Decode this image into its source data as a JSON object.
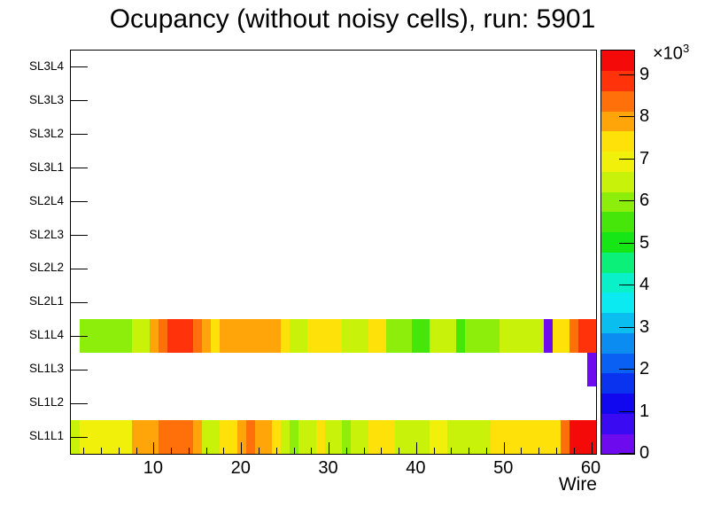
{
  "title": "Ocupancy (without noisy cells), run: 5901",
  "chart_data": {
    "type": "heatmap",
    "title": "Ocupancy (without noisy cells), run: 5901",
    "xlabel": "Wire",
    "ylabel": "",
    "x_range": [
      0.5,
      60.5
    ],
    "n_wires": 60,
    "x_major_ticks": [
      10,
      20,
      30,
      40,
      50,
      60
    ],
    "x_minor_tick_step": 2,
    "grid": "off",
    "zmax": 9580,
    "z_scale": {
      "label": "×10",
      "exponent": "3"
    },
    "colorbar_ticks_thousands": [
      0,
      1,
      2,
      3,
      4,
      5,
      6,
      7,
      8,
      9
    ],
    "palette_low_to_high": [
      "#6E0AEE",
      "#3A0BF2",
      "#1208F0",
      "#0A33F0",
      "#0A60F2",
      "#0A8CF0",
      "#0ABEF0",
      "#0AEAF0",
      "#0AF0C8",
      "#0AF078",
      "#16E616",
      "#46E60A",
      "#8CEE0A",
      "#C8F20A",
      "#F0F00A",
      "#FFE10A",
      "#FFA50A",
      "#FF700A",
      "#FF320A",
      "#F50A0A"
    ],
    "rows_top_to_bottom": [
      {
        "label": "SL3L4",
        "values": []
      },
      {
        "label": "SL3L3",
        "values": []
      },
      {
        "label": "SL3L2",
        "values": []
      },
      {
        "label": "SL3L1",
        "values": []
      },
      {
        "label": "SL2L4",
        "values": []
      },
      {
        "label": "SL2L3",
        "values": []
      },
      {
        "label": "SL2L2",
        "values": []
      },
      {
        "label": "SL2L1",
        "values": []
      },
      {
        "label": "SL1L4",
        "values": [
          0,
          5990,
          5990,
          5990,
          5990,
          5990,
          5990,
          6470,
          6470,
          7900,
          8380,
          8860,
          8860,
          8860,
          8380,
          7900,
          7420,
          7900,
          7900,
          7900,
          7900,
          7900,
          7900,
          7900,
          7420,
          6470,
          6470,
          7420,
          7420,
          7420,
          7420,
          6470,
          6470,
          6470,
          7420,
          7420,
          5990,
          5990,
          5990,
          5510,
          5510,
          6470,
          6470,
          6470,
          5510,
          5990,
          5990,
          5990,
          5990,
          6470,
          6470,
          6470,
          6470,
          6470,
          240,
          7420,
          7420,
          8380,
          8860,
          8860
        ]
      },
      {
        "label": "SL1L3",
        "values": [
          0,
          0,
          0,
          0,
          0,
          0,
          0,
          0,
          0,
          0,
          0,
          0,
          0,
          0,
          0,
          0,
          0,
          0,
          0,
          0,
          0,
          0,
          0,
          0,
          0,
          0,
          0,
          0,
          0,
          0,
          0,
          0,
          0,
          0,
          0,
          0,
          0,
          0,
          0,
          0,
          0,
          0,
          0,
          0,
          0,
          0,
          0,
          0,
          0,
          0,
          0,
          0,
          0,
          0,
          0,
          0,
          0,
          0,
          0,
          240
        ]
      },
      {
        "label": "SL1L2",
        "values": []
      },
      {
        "label": "SL1L1",
        "values": [
          6470,
          6950,
          6950,
          6950,
          6950,
          6950,
          6950,
          7900,
          7900,
          7900,
          8380,
          8380,
          8380,
          8380,
          7900,
          6470,
          6470,
          7420,
          7420,
          7900,
          8380,
          7900,
          7900,
          7420,
          6470,
          5990,
          6470,
          6470,
          7420,
          6470,
          6470,
          5990,
          6470,
          6470,
          7420,
          7420,
          7420,
          6470,
          6470,
          6470,
          6470,
          6950,
          6950,
          6470,
          6470,
          6470,
          6470,
          6470,
          7420,
          7420,
          7420,
          7420,
          7420,
          7420,
          7420,
          7420,
          8380,
          9340,
          9340,
          9340
        ]
      }
    ]
  }
}
